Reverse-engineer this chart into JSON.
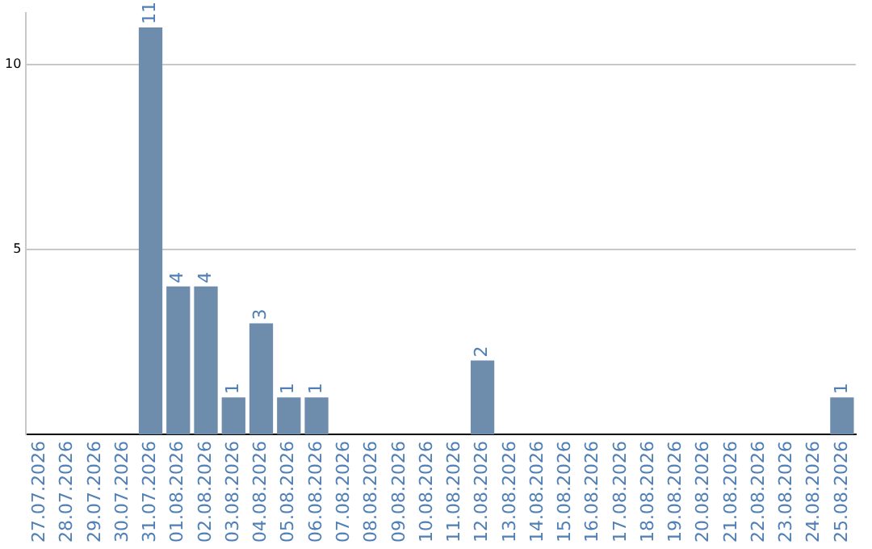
{
  "chart_data": {
    "type": "bar",
    "categories": [
      "27.07.2026",
      "28.07.2026",
      "29.07.2026",
      "30.07.2026",
      "31.07.2026",
      "01.08.2026",
      "02.08.2026",
      "03.08.2026",
      "04.08.2026",
      "05.08.2026",
      "06.08.2026",
      "07.08.2026",
      "08.08.2026",
      "09.08.2026",
      "10.08.2026",
      "11.08.2026",
      "12.08.2026",
      "13.08.2026",
      "14.08.2026",
      "15.08.2026",
      "16.08.2026",
      "17.08.2026",
      "18.08.2026",
      "19.08.2026",
      "20.08.2026",
      "21.08.2026",
      "22.08.2026",
      "23.08.2026",
      "24.08.2026",
      "25.08.2026"
    ],
    "values": [
      0,
      0,
      0,
      0,
      11,
      4,
      4,
      1,
      3,
      1,
      1,
      0,
      0,
      0,
      0,
      0,
      2,
      0,
      0,
      0,
      0,
      0,
      0,
      0,
      0,
      0,
      0,
      0,
      0,
      1
    ],
    "value_labels": [
      null,
      null,
      null,
      null,
      "11",
      "4",
      "4",
      "1",
      "3",
      "1",
      "1",
      null,
      null,
      null,
      null,
      null,
      "2",
      null,
      null,
      null,
      null,
      null,
      null,
      null,
      null,
      null,
      null,
      null,
      null,
      "1"
    ],
    "color": "#6e8cab",
    "ylim": [
      0,
      11.4
    ],
    "yticks": [
      5,
      10
    ],
    "grid": "y",
    "legend": false
  }
}
